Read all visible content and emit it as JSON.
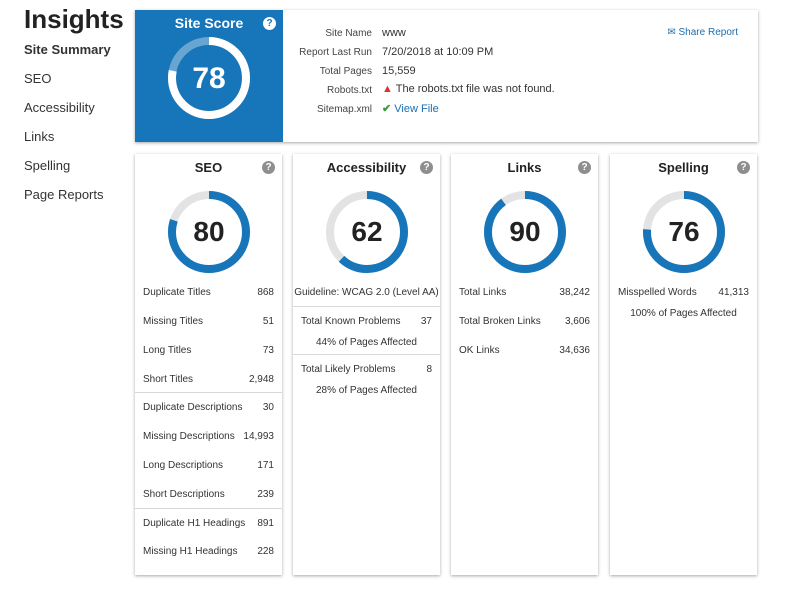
{
  "app": {
    "title": "Insights"
  },
  "sidebar": {
    "items": [
      {
        "label": "Site Summary",
        "active": true
      },
      {
        "label": "SEO"
      },
      {
        "label": "Accessibility"
      },
      {
        "label": "Links"
      },
      {
        "label": "Spelling"
      },
      {
        "label": "Page Reports"
      }
    ]
  },
  "site_score": {
    "title": "Site Score",
    "value": 78,
    "help": "?",
    "share_label": "Share Report",
    "share_icon": "envelope-icon",
    "info": [
      {
        "label": "Site Name",
        "value": "www"
      },
      {
        "label": "Report Last Run",
        "value": "7/20/2018 at 10:09 PM"
      },
      {
        "label": "Total Pages",
        "value": "15,559"
      },
      {
        "label": "Robots.txt",
        "value": "The robots.txt file was not found.",
        "icon": "warning-icon"
      },
      {
        "label": "Sitemap.xml",
        "value": "View File",
        "icon": "checkmark-icon"
      }
    ]
  },
  "colors": {
    "accent": "#1775b9",
    "ring_track": "#e3e3e3",
    "warning": "#d9352a",
    "success": "#3a9a3a"
  },
  "cards": {
    "seo": {
      "title": "SEO",
      "score": 80,
      "groups": [
        [
          {
            "label": "Duplicate Titles",
            "value": "868"
          },
          {
            "label": "Missing Titles",
            "value": "51"
          },
          {
            "label": "Long Titles",
            "value": "73"
          },
          {
            "label": "Short Titles",
            "value": "2,948"
          }
        ],
        [
          {
            "label": "Duplicate Descriptions",
            "value": "30"
          },
          {
            "label": "Missing Descriptions",
            "value": "14,993"
          },
          {
            "label": "Long Descriptions",
            "value": "171"
          },
          {
            "label": "Short Descriptions",
            "value": "239"
          }
        ],
        [
          {
            "label": "Duplicate H1 Headings",
            "value": "891"
          },
          {
            "label": "Missing H1 Headings",
            "value": "228"
          }
        ]
      ]
    },
    "accessibility": {
      "title": "Accessibility",
      "score": 62,
      "guideline": "Guideline: WCAG 2.0 (Level AA)",
      "known_label": "Total Known Problems",
      "known_value": "37",
      "known_pct": "44% of Pages Affected",
      "likely_label": "Total Likely Problems",
      "likely_value": "8",
      "likely_pct": "28% of Pages Affected"
    },
    "links": {
      "title": "Links",
      "score": 90,
      "rows": [
        {
          "label": "Total Links",
          "value": "38,242"
        },
        {
          "label": "Total Broken Links",
          "value": "3,606"
        },
        {
          "label": "OK Links",
          "value": "34,636"
        }
      ]
    },
    "spelling": {
      "title": "Spelling",
      "score": 76,
      "misspelled_label": "Misspelled Words",
      "misspelled_value": "41,313",
      "pct": "100% of Pages Affected"
    }
  }
}
